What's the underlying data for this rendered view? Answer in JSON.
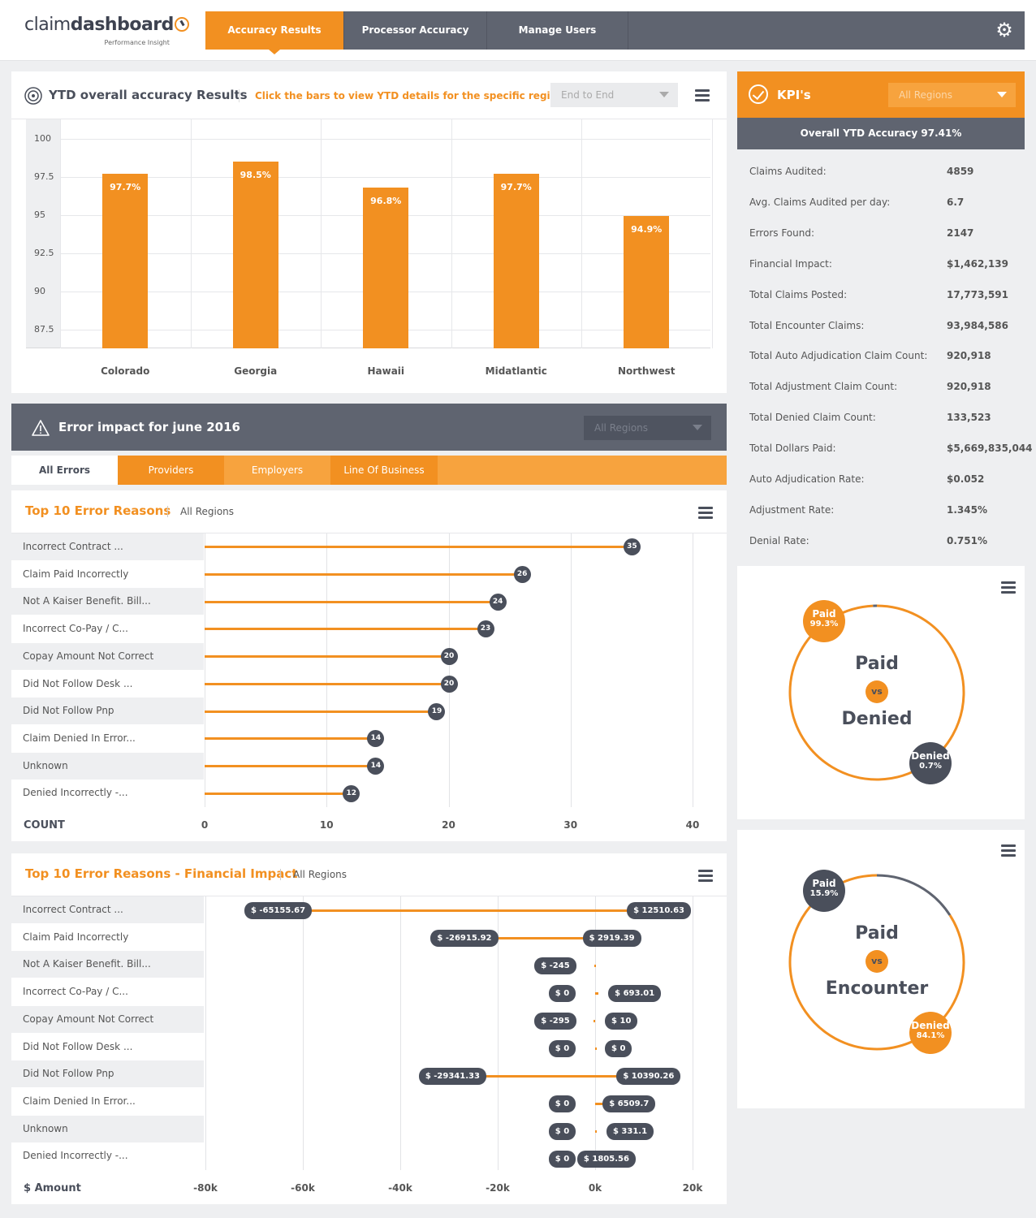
{
  "logo": {
    "brand_light": "claim",
    "brand_bold": "dashboard",
    "tagline": "Performance Insight"
  },
  "nav": {
    "tabs": [
      "Accuracy Results",
      "Processor Accuracy",
      "Manage Users"
    ],
    "active": 0
  },
  "ytd": {
    "title": "YTD overall accuracy Results",
    "hint": "Click the bars to view YTD details for the specific region",
    "filter": "End to End"
  },
  "chart_data": [
    {
      "type": "bar",
      "categories": [
        "Colorado",
        "Georgia",
        "Hawaii",
        "Midatlantic",
        "Northwest"
      ],
      "values": [
        97.7,
        98.5,
        96.8,
        97.7,
        94.9
      ],
      "value_labels": [
        "97.7%",
        "98.5%",
        "96.8%",
        "97.7%",
        "94.9%"
      ],
      "yticks": [
        "100",
        "97.5",
        "95",
        "92.5",
        "90",
        "87.5"
      ],
      "ylim": [
        86.25,
        101.25
      ]
    },
    {
      "type": "bar",
      "title": "Top 10 Error Reasons",
      "categories": [
        "Incorrect Contract ...",
        "Claim Paid Incorrectly",
        "Not A Kaiser Benefit.  Bill...",
        "Incorrect Co-Pay / C...",
        "Copay Amount Not Correct",
        "Did Not Follow Desk ...",
        "Did Not Follow Pnp",
        "Claim Denied In Error...",
        "Unknown",
        "Denied Incorrectly -..."
      ],
      "values": [
        35,
        26,
        24,
        23,
        20,
        20,
        19,
        14,
        14,
        12
      ],
      "xlabel": "COUNT",
      "xticks": [
        "0",
        "10",
        "20",
        "30",
        "40"
      ],
      "xlim": [
        0,
        40
      ]
    },
    {
      "type": "bar",
      "title": "Top 10 Error Reasons - Financial Impact",
      "categories": [
        "Incorrect Contract ...",
        "Claim Paid Incorrectly",
        "Not A Kaiser Benefit.  Bill...",
        "Incorrect Co-Pay / C...",
        "Copay Amount Not Correct",
        "Did Not Follow Desk ...",
        "Did Not Follow Pnp",
        "Claim Denied In Error...",
        "Unknown",
        "Denied Incorrectly -..."
      ],
      "low": [
        -65155.67,
        -26915.92,
        -245,
        0,
        -295,
        0,
        -29341.33,
        0,
        0,
        0
      ],
      "high": [
        12510.63,
        2919.39,
        null,
        693.01,
        10,
        0,
        10390.26,
        6509.7,
        331.1,
        1805.56
      ],
      "low_labels": [
        "$ -65155.67",
        "$ -26915.92",
        "$ -245",
        "$ 0",
        "$ -295",
        "$ 0",
        "$ -29341.33",
        "$ 0",
        "$ 0",
        "$ 0"
      ],
      "high_labels": [
        "$ 12510.63",
        "$ 2919.39",
        "",
        "$ 693.01",
        "$ 10",
        "$ 0",
        "$ 10390.26",
        "$ 6509.7",
        "$ 331.1",
        "$ 1805.56"
      ],
      "xlabel": "$ Amount",
      "xticks": [
        "-80k",
        "-60k",
        "-40k",
        "-20k",
        "0k",
        "20k"
      ],
      "xlim": [
        -80000,
        20000
      ]
    },
    {
      "type": "pie",
      "title": "Paid vs Denied",
      "slices": [
        {
          "name": "Paid",
          "value": 99.3,
          "label": "99.3%"
        },
        {
          "name": "Denied",
          "value": 0.7,
          "label": "0.7%"
        }
      ]
    },
    {
      "type": "pie",
      "title": "Paid vs Encounter",
      "slices": [
        {
          "name": "Paid",
          "value": 15.9,
          "label": "15.9%"
        },
        {
          "name": "Denied",
          "value": 84.1,
          "label": "84.1%"
        }
      ]
    }
  ],
  "error_impact": {
    "title": "Error impact for june 2016",
    "filter": "All Regions",
    "tabs": [
      "All Errors",
      "Providers",
      "Employers",
      "Line Of Business"
    ]
  },
  "top10": {
    "title": "Top 10 Error Reasons",
    "region": "All Regions"
  },
  "top10fin": {
    "title": "Top 10 Error Reasons - Financial Impact",
    "region": "All Regions"
  },
  "kpi": {
    "title": "KPI's",
    "filter": "All Regions",
    "overall": "Overall YTD Accuracy 97.41%",
    "rows": [
      {
        "label": "Claims Audited:",
        "value": "4859"
      },
      {
        "label": "Avg. Claims Audited per day:",
        "value": "6.7"
      },
      {
        "label": "Errors Found:",
        "value": "2147"
      },
      {
        "label": "Financial Impact:",
        "value": "$1,462,139"
      },
      {
        "label": "Total Claims Posted:",
        "value": "17,773,591"
      },
      {
        "label": "Total Encounter Claims:",
        "value": "93,984,586"
      },
      {
        "label": "Total Auto Adjudication Claim Count:",
        "value": "920,918"
      },
      {
        "label": "Total Adjustment Claim Count:",
        "value": "920,918"
      },
      {
        "label": "Total Denied Claim Count:",
        "value": "133,523"
      },
      {
        "label": "Total Dollars Paid:",
        "value": "$5,669,835,044"
      },
      {
        "label": "Auto Adjudication Rate:",
        "value": "$0.052"
      },
      {
        "label": "Adjustment Rate:",
        "value": "1.345%"
      },
      {
        "label": "Denial Rate:",
        "value": "0.751%"
      }
    ]
  },
  "donut1": {
    "top": "Paid",
    "vs": "vs",
    "bottom": "Denied"
  },
  "donut2": {
    "top": "Paid",
    "vs": "vs",
    "bottom": "Encounter"
  },
  "colors": {
    "accent": "#f29021",
    "dark": "#5f6470",
    "badge_dark": "#4a4f5b"
  },
  "icons": {
    "settings": "gear-icon",
    "ytd": "target-icon",
    "error": "warning-icon",
    "kpi": "check-circle-icon",
    "menu": "hamburger-menu-icon"
  }
}
